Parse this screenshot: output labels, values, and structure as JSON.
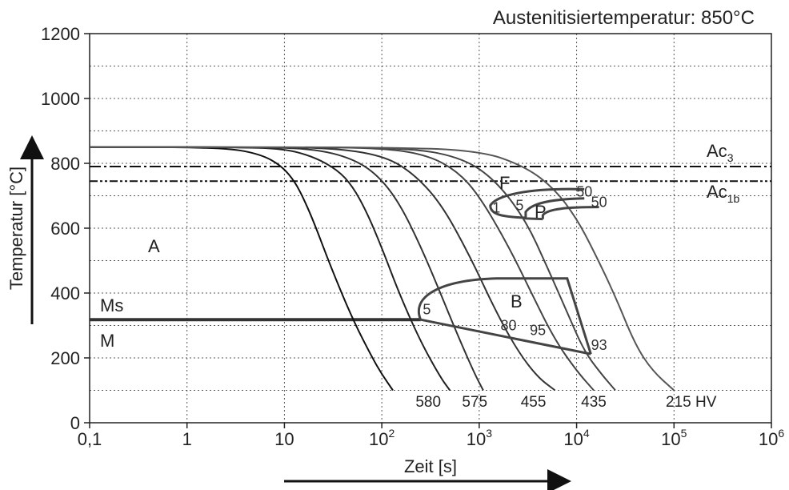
{
  "chart_data": {
    "type": "line",
    "title": "Austenitisiertemperatur: 850°C",
    "xlabel": "Zeit [s]",
    "ylabel": "Temperatur [°C]",
    "x_scale": "log",
    "xlim": [
      0.1,
      1000000
    ],
    "ylim": [
      0,
      1200
    ],
    "grid": true,
    "x_ticks": [
      {
        "v": 0.1,
        "base": "0,1",
        "exp": ""
      },
      {
        "v": 1,
        "base": "1",
        "exp": ""
      },
      {
        "v": 10,
        "base": "10",
        "exp": ""
      },
      {
        "v": 100,
        "base": "10",
        "exp": "2"
      },
      {
        "v": 1000,
        "base": "10",
        "exp": "3"
      },
      {
        "v": 10000,
        "base": "10",
        "exp": "4"
      },
      {
        "v": 100000,
        "base": "10",
        "exp": "5"
      },
      {
        "v": 1000000,
        "base": "10",
        "exp": "6"
      }
    ],
    "y_ticks": [
      0,
      200,
      400,
      600,
      800,
      1000,
      1200
    ],
    "reference_lines": [
      {
        "name": "Ac3",
        "base": "Ac",
        "sub": "3",
        "y": 790
      },
      {
        "name": "Ac1b",
        "base": "Ac",
        "sub": "1b",
        "y": 745
      },
      {
        "name": "Ms",
        "base": "Ms",
        "sub": "",
        "y": 318
      }
    ],
    "series": [
      {
        "x": [
          0.1,
          0.8,
          3,
          6,
          9,
          12,
          15,
          20,
          30,
          50,
          80,
          100,
          130
        ],
        "y": [
          850,
          850,
          845,
          825,
          795,
          755,
          705,
          620,
          480,
          320,
          200,
          150,
          100
        ]
      },
      {
        "x": [
          0.1,
          3,
          10,
          20,
          35,
          50,
          70,
          100,
          150,
          250,
          400,
          500
        ],
        "y": [
          850,
          850,
          845,
          820,
          780,
          730,
          650,
          540,
          400,
          250,
          140,
          100
        ]
      },
      {
        "x": [
          0.1,
          5,
          20,
          50,
          90,
          150,
          250,
          400,
          600,
          900,
          1100
        ],
        "y": [
          850,
          850,
          845,
          815,
          765,
          680,
          545,
          400,
          270,
          150,
          100
        ]
      },
      {
        "x": [
          0.1,
          5,
          30,
          100,
          200,
          400,
          800,
          1500,
          2500,
          4000,
          6000
        ],
        "y": [
          850,
          850,
          848,
          825,
          775,
          680,
          515,
          340,
          220,
          140,
          100
        ]
      },
      {
        "x": [
          0.1,
          10,
          100,
          300,
          600,
          1000,
          2000,
          3500,
          6000,
          10000,
          15000
        ],
        "y": [
          850,
          850,
          848,
          825,
          775,
          700,
          545,
          395,
          255,
          160,
          100
        ]
      },
      {
        "x": [
          0.1,
          10,
          200,
          700,
          1500,
          3000,
          5000,
          8000,
          12000,
          18000,
          25000
        ],
        "y": [
          850,
          850,
          848,
          815,
          745,
          625,
          480,
          340,
          220,
          150,
          100
        ]
      },
      {
        "x": [
          0.1,
          100,
          1000,
          3000,
          6000,
          10000,
          15000,
          25000,
          40000,
          60000,
          100000
        ],
        "y": [
          850,
          850,
          840,
          790,
          720,
          630,
          530,
          390,
          240,
          160,
          100
        ]
      }
    ],
    "regions": {
      "austenite": "A",
      "martensite": "M",
      "ferrite": "F",
      "pearlite": "P",
      "bainite": "B"
    },
    "phase_percent_labels": [
      {
        "text": "1",
        "x": 1500,
        "y": 648
      },
      {
        "text": "5",
        "x": 2600,
        "y": 655
      },
      {
        "text": "50",
        "x": 12000,
        "y": 698
      },
      {
        "text": "50",
        "x": 17000,
        "y": 665
      },
      {
        "text": "5",
        "x": 290,
        "y": 335
      },
      {
        "text": "80",
        "x": 2000,
        "y": 285
      },
      {
        "text": "95",
        "x": 4000,
        "y": 270
      },
      {
        "text": "93",
        "x": 17000,
        "y": 225
      }
    ],
    "hardness_labels": [
      {
        "text": "580",
        "x": 300
      },
      {
        "text": "575",
        "x": 900
      },
      {
        "text": "455",
        "x": 3600
      },
      {
        "text": "435",
        "x": 15000
      },
      {
        "text": "215 HV",
        "x": 150000
      }
    ]
  }
}
